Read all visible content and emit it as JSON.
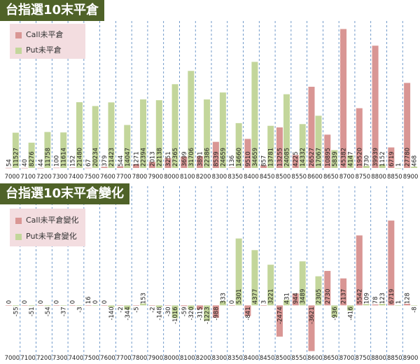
{
  "colors": {
    "call": "#d99694",
    "put": "#c3d69b",
    "title_bg": "#4f6228",
    "title_text": "#ffffff",
    "legend_bg": "#f3dde0",
    "gridline": "#4f81bd"
  },
  "chart_data": [
    {
      "type": "bar",
      "title": "台指選10末平倉",
      "categories": [
        "7000",
        "7100",
        "7200",
        "7300",
        "7400",
        "7500",
        "7600",
        "7700",
        "7800",
        "7900",
        "8000",
        "8100",
        "8200",
        "8300",
        "8350",
        "8400",
        "8450",
        "8500",
        "8550",
        "8600",
        "8650",
        "8700",
        "8750",
        "8800",
        "8850",
        "8900"
      ],
      "series": [
        {
          "name": "Call未平倉",
          "values": [
            54,
            40,
            44,
            100,
            152,
            67,
            379,
            544,
            1271,
            2013,
            3251,
            3699,
            3891,
            8539,
            136,
            9510,
            857,
            13255,
            4225,
            26527,
            10895,
            45382,
            19520,
            39939,
            6719,
            27780
          ]
        },
        {
          "name": "Put未平倉",
          "values": [
            11527,
            8276,
            11758,
            11614,
            21480,
            20234,
            21423,
            14047,
            22394,
            22138,
            27365,
            31706,
            22386,
            24659,
            14660,
            34659,
            13781,
            24085,
            14332,
            17067,
            5839,
            4147,
            730,
            1152,
            1,
            468
          ]
        }
      ],
      "legend": "top-left",
      "ylim": [
        0,
        48000
      ]
    },
    {
      "type": "bar",
      "title": "台指選10末平倉變化",
      "categories": [
        "7000",
        "7100",
        "7200",
        "7300",
        "7400",
        "7500",
        "7600",
        "7700",
        "7800",
        "7900",
        "8000",
        "8100",
        "8200",
        "8300",
        "8350",
        "8400",
        "8450",
        "8500",
        "8550",
        "8600",
        "8650",
        "8700",
        "8750",
        "8800",
        "8850",
        "8900"
      ],
      "series": [
        {
          "name": "Call未平倉變化",
          "values": [
            0,
            0,
            0,
            0,
            0,
            16,
            0,
            -2,
            -5,
            -2,
            -30,
            -59,
            -315,
            -988,
            0,
            -841,
            3,
            -2474,
            944,
            -3621,
            2730,
            2137,
            5542,
            78,
            6719,
            128
          ]
        },
        {
          "name": "Put未平倉變化",
          "values": [
            -55,
            -51,
            -54,
            -37,
            -3,
            0,
            -140,
            -344,
            153,
            -148,
            -1016,
            -320,
            -1223,
            333,
            5301,
            4377,
            3221,
            431,
            3489,
            2305,
            -936,
            -416,
            109,
            123,
            1,
            -8
          ]
        }
      ],
      "legend": "top-left",
      "ylim": [
        -4200,
        8000
      ]
    }
  ]
}
